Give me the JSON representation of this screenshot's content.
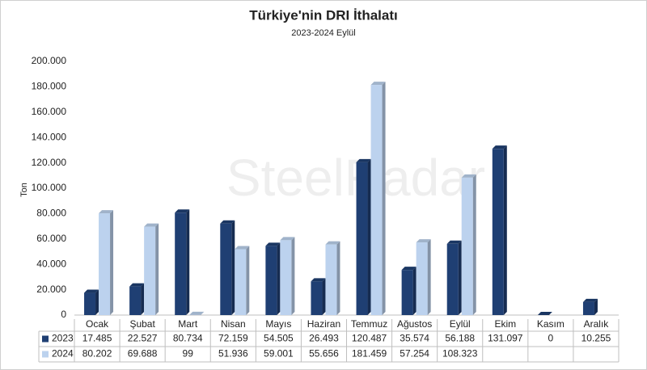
{
  "chart_data": {
    "type": "bar",
    "title": "Türkiye'nin DRI İthalatı",
    "subtitle": "2023-2024 Eylül",
    "y_label": "Ton",
    "watermark": "SteelRadar",
    "categories": [
      "Ocak",
      "Şubat",
      "Mart",
      "Nisan",
      "Mayıs",
      "Haziran",
      "Temmuz",
      "Ağustos",
      "Eylül",
      "Ekim",
      "Kasım",
      "Aralık"
    ],
    "series": [
      {
        "name": "2023",
        "color": "#1f3f73",
        "values": [
          17485,
          22527,
          80734,
          72159,
          54505,
          26493,
          120487,
          35574,
          56188,
          131097,
          0,
          10255
        ],
        "value_labels": [
          "17.485",
          "22.527",
          "80.734",
          "72.159",
          "54.505",
          "26.493",
          "120.487",
          "35.574",
          "56.188",
          "131.097",
          "0",
          "10.255"
        ]
      },
      {
        "name": "2024",
        "color": "#bcd2ee",
        "values": [
          80202,
          69688,
          99,
          51936,
          59001,
          55656,
          181459,
          57254,
          108323,
          null,
          null,
          null
        ],
        "value_labels": [
          "80.202",
          "69.688",
          "99",
          "51.936",
          "59.001",
          "55.656",
          "181.459",
          "57.254",
          "108.323",
          null,
          null,
          null
        ]
      }
    ],
    "ylim": [
      0,
      200000
    ],
    "yticks": [
      0,
      {
        "value": 20000,
        "label": "20.000"
      },
      {
        "value": 40000,
        "label": "40.000"
      },
      {
        "value": 60000,
        "label": "60.000"
      },
      {
        "value": 80000,
        "label": "80.000"
      },
      {
        "value": 100000,
        "label": "100.000"
      },
      {
        "value": 120000,
        "label": "120.000"
      },
      {
        "value": 140000,
        "label": "140.000"
      },
      {
        "value": 160000,
        "label": "160.000"
      },
      {
        "value": 180000,
        "label": "180.000"
      },
      {
        "value": 200000,
        "label": "200.000"
      }
    ]
  }
}
